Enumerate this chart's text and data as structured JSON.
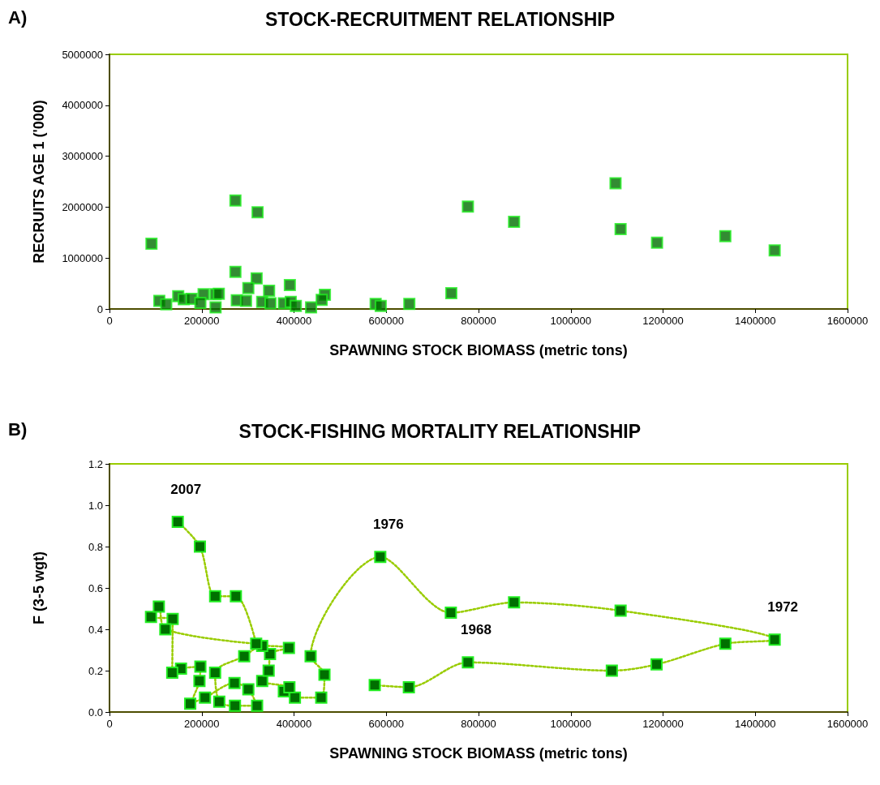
{
  "chart_data": [
    {
      "type": "scatter",
      "title": "STOCK-RECRUITMENT RELATIONSHIP",
      "xlabel": "SPAWNING STOCK BIOMASS (metric tons)",
      "ylabel": "RECRUITS AGE 1 ('000)",
      "annotations": [
        "A)"
      ],
      "marker": "square",
      "grid": false,
      "xlim": [
        0,
        1600000
      ],
      "xticks": [
        0,
        200000,
        400000,
        600000,
        800000,
        1000000,
        1200000,
        1400000,
        1600000
      ],
      "ylim": [
        0,
        5000000
      ],
      "yticks": [
        0,
        1000000,
        2000000,
        3000000,
        4000000,
        5000000
      ],
      "series": [
        {
          "color": "#006f00",
          "x": [
            273000,
            321000,
            91000,
            273000,
            319000,
            301000,
            391000,
            346000,
            467000,
            460000,
            108000,
            123000,
            149000,
            161000,
            178000,
            204000,
            197000,
            230000,
            237000,
            230000,
            276000,
            296000,
            331000,
            349000,
            378000,
            393000,
            404000,
            437000,
            577000,
            588000,
            650000,
            741000,
            777000,
            877000,
            1097000,
            1108000,
            1187000,
            1335000,
            1442000
          ],
          "values": [
            2130000,
            1900000,
            1280000,
            730000,
            600000,
            410000,
            470000,
            360000,
            280000,
            180000,
            160000,
            90000,
            250000,
            190000,
            200000,
            290000,
            120000,
            290000,
            300000,
            30000,
            170000,
            160000,
            140000,
            110000,
            110000,
            140000,
            60000,
            30000,
            100000,
            60000,
            100000,
            310000,
            2010000,
            1710000,
            2470000,
            1570000,
            1300000,
            1430000,
            1150000
          ]
        }
      ]
    },
    {
      "type": "line",
      "title": "STOCK-FISHING MORTALITY RELATIONSHIP",
      "xlabel": "SPAWNING STOCK BIOMASS (metric tons)",
      "ylabel": "F (3-5 wgt)",
      "marker": "square",
      "line_style": "dotted",
      "grid": false,
      "annotations": [
        "B)",
        {
          "text": "2007",
          "x": 148000,
          "y": 0.92
        },
        {
          "text": "1976",
          "x": 587000,
          "y": 0.75
        },
        {
          "text": "1972",
          "x": 1442000,
          "y": 0.35
        },
        {
          "text": "1968",
          "x": 777000,
          "y": 0.24
        }
      ],
      "xlim": [
        0,
        1600000
      ],
      "xticks": [
        0,
        200000,
        400000,
        600000,
        800000,
        1000000,
        1200000,
        1400000,
        1600000
      ],
      "ylim": [
        0,
        1.2
      ],
      "yticks": [
        {
          "value": 0,
          "label": "0.0"
        },
        0.2,
        0.4,
        0.6,
        0.8,
        {
          "value": 1,
          "label": "1.0"
        },
        1.2
      ],
      "series": [
        {
          "color": "#006f00",
          "x": [
            575000,
            649000,
            777000,
            1089000,
            1186000,
            1335000,
            1442000,
            1108000,
            877000,
            740000,
            587000,
            436000,
            466000,
            459000,
            402000,
            378000,
            390000,
            331000,
            345000,
            348000,
            389000,
            331000,
            292000,
            229000,
            238000,
            272000,
            320000,
            301000,
            271000,
            207000,
            175000,
            195000,
            197000,
            155000,
            136000,
            137000,
            90000,
            107000,
            121000,
            318000,
            274000,
            229000,
            196000,
            148000
          ],
          "values": [
            0.13,
            0.12,
            0.24,
            0.2,
            0.23,
            0.33,
            0.35,
            0.49,
            0.53,
            0.48,
            0.75,
            0.27,
            0.18,
            0.07,
            0.07,
            0.1,
            0.12,
            0.15,
            0.2,
            0.28,
            0.31,
            0.32,
            0.27,
            0.19,
            0.05,
            0.03,
            0.03,
            0.11,
            0.14,
            0.07,
            0.04,
            0.15,
            0.22,
            0.21,
            0.19,
            0.45,
            0.46,
            0.51,
            0.4,
            0.33,
            0.56,
            0.56,
            0.8,
            0.92
          ]
        }
      ]
    }
  ]
}
